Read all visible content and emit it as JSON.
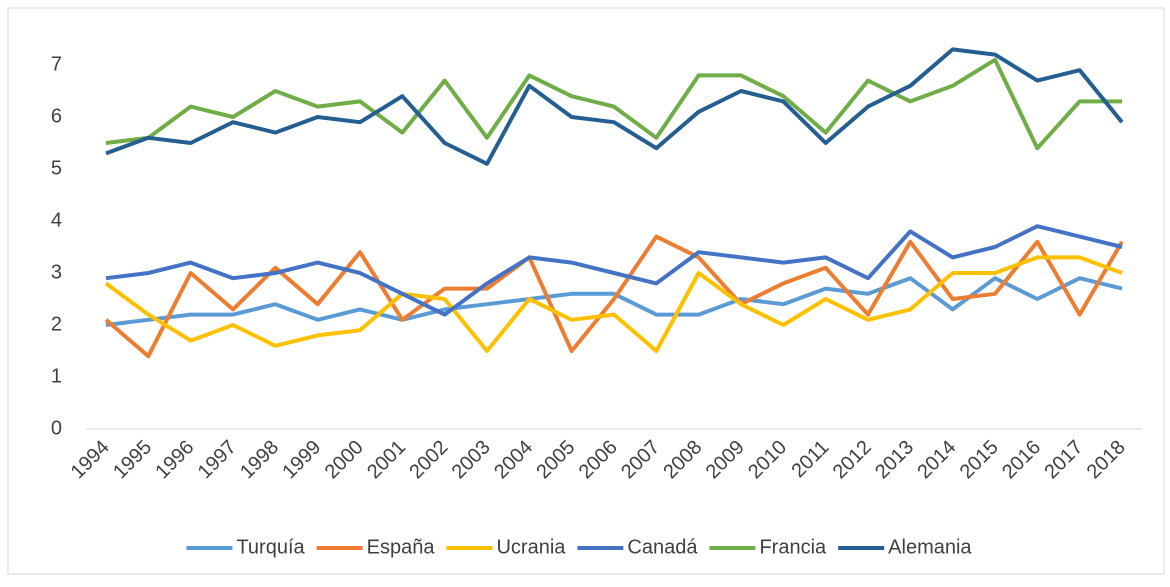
{
  "chart_data": {
    "type": "line",
    "categories": [
      "1994",
      "1995",
      "1996",
      "1997",
      "1998",
      "1999",
      "2000",
      "2001",
      "2002",
      "2003",
      "2004",
      "2005",
      "2006",
      "2007",
      "2008",
      "2009",
      "2010",
      "2011",
      "2012",
      "2013",
      "2014",
      "2015",
      "2016",
      "2017",
      "2018"
    ],
    "series": [
      {
        "name": "Turquía",
        "color": "#5b9bd5",
        "values": [
          2.0,
          2.1,
          2.2,
          2.2,
          2.4,
          2.1,
          2.3,
          2.1,
          2.3,
          2.4,
          2.5,
          2.6,
          2.6,
          2.2,
          2.2,
          2.5,
          2.4,
          2.7,
          2.6,
          2.9,
          2.3,
          2.9,
          2.5,
          2.9,
          2.7
        ]
      },
      {
        "name": "España",
        "color": "#ed7d31",
        "values": [
          2.1,
          1.4,
          3.0,
          2.3,
          3.1,
          2.4,
          3.4,
          2.1,
          2.7,
          2.7,
          3.3,
          1.5,
          2.5,
          3.7,
          3.3,
          2.4,
          2.8,
          3.1,
          2.2,
          3.6,
          2.5,
          2.6,
          3.6,
          2.2,
          3.6
        ]
      },
      {
        "name": "Ucrania",
        "color": "#ffc000",
        "values": [
          2.8,
          2.2,
          1.7,
          2.0,
          1.6,
          1.8,
          1.9,
          2.6,
          2.5,
          1.5,
          2.5,
          2.1,
          2.2,
          1.5,
          3.0,
          2.4,
          2.0,
          2.5,
          2.1,
          2.3,
          3.0,
          3.0,
          3.3,
          3.3,
          3.0
        ]
      },
      {
        "name": "Canadá",
        "color": "#4472c4",
        "values": [
          2.9,
          3.0,
          3.2,
          2.9,
          3.0,
          3.2,
          3.0,
          2.6,
          2.2,
          2.8,
          3.3,
          3.2,
          3.0,
          2.8,
          3.4,
          3.3,
          3.2,
          3.3,
          2.9,
          3.8,
          3.3,
          3.5,
          3.9,
          3.7,
          3.5
        ]
      },
      {
        "name": "Francia",
        "color": "#70ad47",
        "values": [
          5.5,
          5.6,
          6.2,
          6.0,
          6.5,
          6.2,
          6.3,
          5.7,
          6.7,
          5.6,
          6.8,
          6.4,
          6.2,
          5.6,
          6.8,
          6.8,
          6.4,
          5.7,
          6.7,
          6.3,
          6.6,
          7.1,
          5.4,
          6.3,
          6.3
        ]
      },
      {
        "name": "Alemania",
        "color": "#255e91",
        "values": [
          5.3,
          5.6,
          5.5,
          5.9,
          5.7,
          6.0,
          5.9,
          6.4,
          5.5,
          5.1,
          6.6,
          6.0,
          5.9,
          5.4,
          6.1,
          6.5,
          6.3,
          5.5,
          6.2,
          6.6,
          7.3,
          7.2,
          6.7,
          6.9,
          5.9
        ]
      }
    ],
    "ylim": [
      0,
      7.5
    ],
    "yticks": [
      0,
      1,
      2,
      3,
      4,
      5,
      6,
      7
    ],
    "legend": "bottom"
  }
}
